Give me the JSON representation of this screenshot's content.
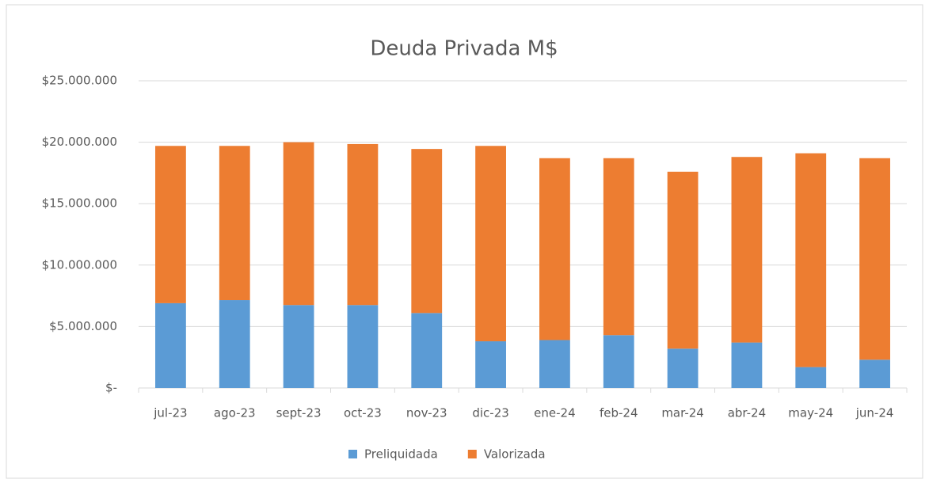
{
  "chart_data": {
    "type": "stacked_bar",
    "title": "Deuda Privada M$",
    "categories": [
      "jul-23",
      "ago-23",
      "sept-23",
      "oct-23",
      "nov-23",
      "dic-23",
      "ene-24",
      "feb-24",
      "mar-24",
      "abr-24",
      "may-24",
      "jun-24"
    ],
    "series": [
      {
        "name": "Preliquidada",
        "color": "#5b9bd5",
        "values": [
          6900000,
          7150000,
          6750000,
          6750000,
          6100000,
          3800000,
          3900000,
          4300000,
          3200000,
          3700000,
          1700000,
          2300000
        ]
      },
      {
        "name": "Valorizada",
        "color": "#ed7d31",
        "values": [
          12800000,
          12550000,
          13250000,
          13100000,
          13350000,
          15900000,
          14800000,
          14400000,
          14400000,
          15100000,
          17400000,
          16400000
        ]
      }
    ],
    "ylim": [
      0,
      25000000
    ],
    "yticks": [
      {
        "value": 0,
        "label": "$-"
      },
      {
        "value": 5000000,
        "label": "$5.000.000"
      },
      {
        "value": 10000000,
        "label": "$10.000.000"
      },
      {
        "value": 15000000,
        "label": "$15.000.000"
      },
      {
        "value": 20000000,
        "label": "$20.000.000"
      },
      {
        "value": 25000000,
        "label": "$25.000.000"
      }
    ],
    "grid": true,
    "legend": "bottom"
  }
}
